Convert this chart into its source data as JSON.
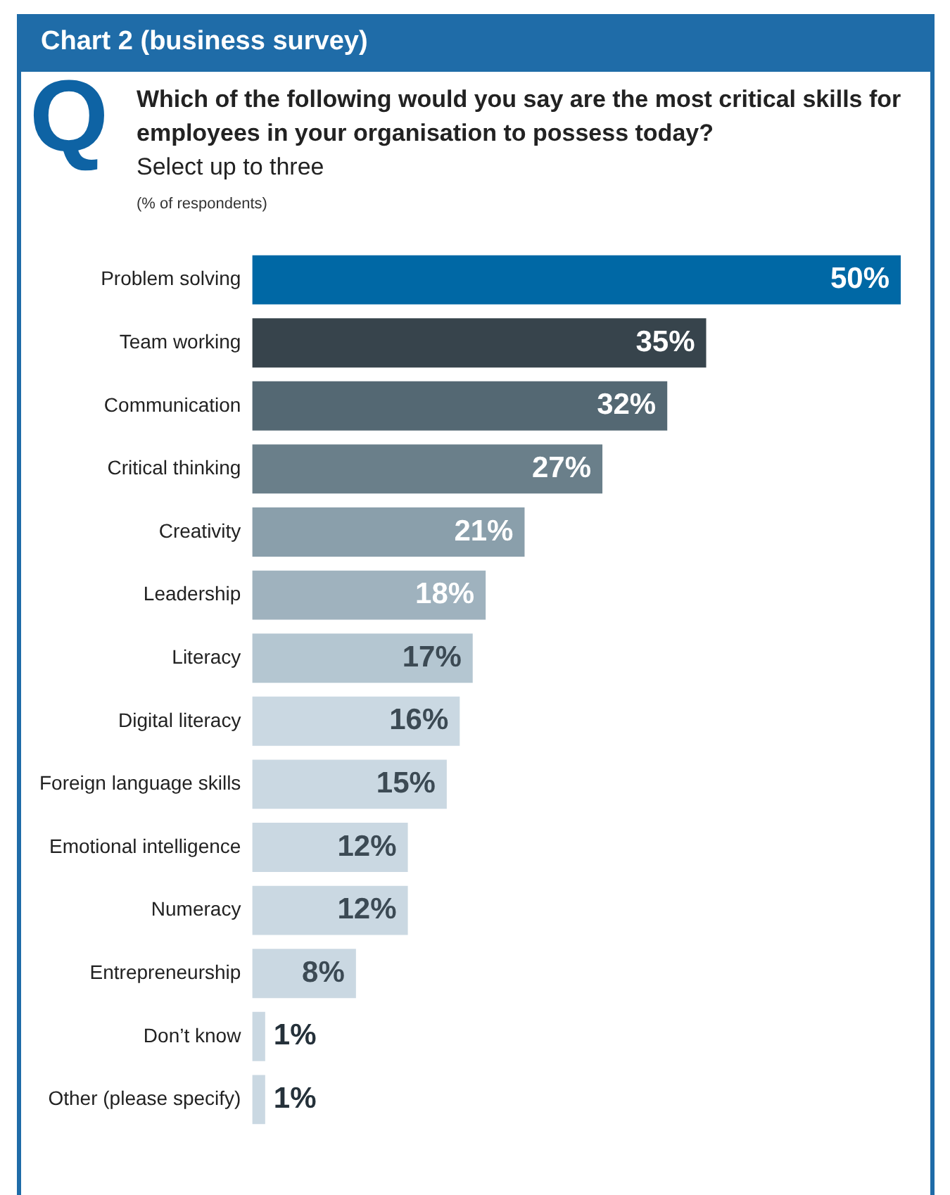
{
  "chart_data": {
    "type": "bar",
    "orientation": "horizontal",
    "title": "Chart 2 (business survey)",
    "subtitle": "Which of the following would you say are the most critical skills for employees in your organisation to possess today?",
    "annotations": [
      "Q",
      "Select up to three",
      "(% of respondents)"
    ],
    "categories": [
      "Problem solving",
      "Team working",
      "Communication",
      "Critical thinking",
      "Creativity",
      "Leadership",
      "Literacy",
      "Digital literacy",
      "Foreign language skills",
      "Emotional intelligence",
      "Numeracy",
      "Entrepreneurship",
      "Don’t know",
      "Other (please specify)"
    ],
    "values": [
      50,
      35,
      32,
      27,
      21,
      18,
      17,
      16,
      15,
      12,
      12,
      8,
      1,
      1
    ],
    "colors": [
      "#0068a5",
      "#37444c",
      "#546873",
      "#6a7f8a",
      "#8a9fab",
      "#9fb2be",
      "#b4c6d1",
      "#cad8e2",
      "#cad8e2",
      "#cad8e2",
      "#cad8e2",
      "#cad8e2",
      "#cad8e2",
      "#cad8e2"
    ],
    "value_labels": [
      "50%",
      "35%",
      "32%",
      "27%",
      "21%",
      "18%",
      "17%",
      "16%",
      "15%",
      "12%",
      "12%",
      "8%",
      "1%",
      "1%"
    ],
    "legend": false
  }
}
